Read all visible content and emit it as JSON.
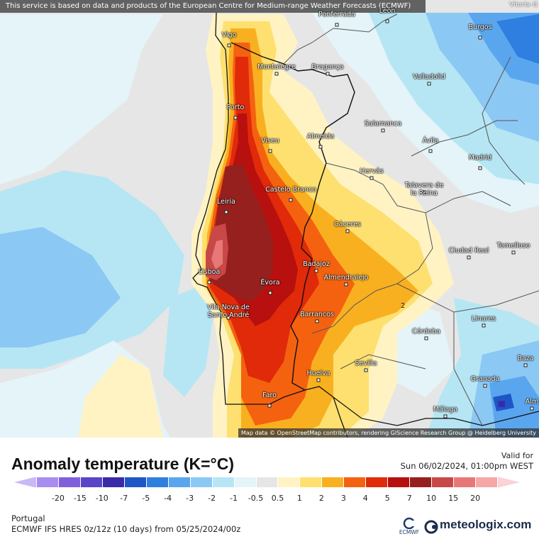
{
  "map": {
    "attribution_top": "This service is based on data and products of the European Centre for Medium-range Weather Forecasts (ECMWF)",
    "attribution_bottom": "Map data © OpenStreetMap contributors, rendering GIScience Research Group @ Heidelberg University",
    "corner_label": "Vitoria-G",
    "contour_label": "2",
    "cities": [
      {
        "name": "Ponferrada"
      },
      {
        "name": "León"
      },
      {
        "name": "Burgos"
      },
      {
        "name": "Vigo"
      },
      {
        "name": "Montalegre"
      },
      {
        "name": "Bragança"
      },
      {
        "name": "Valladolid"
      },
      {
        "name": "Porto"
      },
      {
        "name": "Salamanca"
      },
      {
        "name": "Viseu"
      },
      {
        "name": "Almeida"
      },
      {
        "name": "Ávila"
      },
      {
        "name": "Madrid"
      },
      {
        "name": "Hervás"
      },
      {
        "name": "Talavera de la Reina"
      },
      {
        "name": "Castelo Branco"
      },
      {
        "name": "Leiria"
      },
      {
        "name": "Cáceres"
      },
      {
        "name": "Ciudad Real"
      },
      {
        "name": "Tomelloso"
      },
      {
        "name": "Badajoz"
      },
      {
        "name": "Lisboa"
      },
      {
        "name": "Almendralejo"
      },
      {
        "name": "Évora"
      },
      {
        "name": "Vila Nova de Santo André"
      },
      {
        "name": "Barrancos"
      },
      {
        "name": "Linares"
      },
      {
        "name": "Córdoba"
      },
      {
        "name": "Baza"
      },
      {
        "name": "Sevilla"
      },
      {
        "name": "Huelva"
      },
      {
        "name": "Granada"
      },
      {
        "name": "Faro"
      },
      {
        "name": "Málaga"
      },
      {
        "name": "Alm"
      }
    ]
  },
  "legend": {
    "title": "Anomaly temperature (K=°C)",
    "valid_label": "Valid for",
    "valid_date": "Sun 06/02/2024, 01:00pm WEST",
    "ticks": [
      "-20",
      "-15",
      "-10",
      "-7",
      "-5",
      "-4",
      "-3",
      "-2",
      "-1",
      "-0.5",
      "0.5",
      "1",
      "2",
      "3",
      "4",
      "5",
      "7",
      "10",
      "15",
      "20"
    ],
    "colors": [
      "#c9b8f5",
      "#a98cf0",
      "#7f5fdc",
      "#5a44c8",
      "#3a2aa8",
      "#1e56c8",
      "#2f7fe0",
      "#5aa6ee",
      "#8cc8f4",
      "#b6e6f4",
      "#e4f4f8",
      "#e6e6e6",
      "#fff3c4",
      "#fde070",
      "#f9b020",
      "#f46210",
      "#e02a0a",
      "#b8100e",
      "#96201e",
      "#c84848",
      "#e87878",
      "#f5a6a6",
      "#fad2d8"
    ]
  },
  "footer": {
    "region": "Portugal",
    "model_run": "ECMWF IFS HRES 0z/12z (10 days) from 05/25/2024/00z",
    "ecmwf_label": "ECMWF",
    "brand": "meteologix.com"
  }
}
